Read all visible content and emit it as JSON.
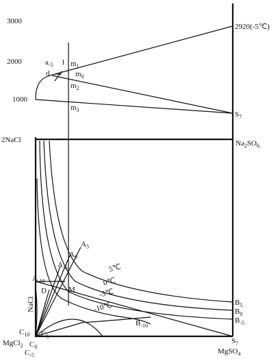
{
  "axis_labels": [
    "3000",
    "2000",
    "1000"
  ],
  "labels": {
    "NaCl2": {
      "main": "2NaCl"
    },
    "Na2SO4": {
      "main": "Na",
      "sub": "2",
      "tail": "SO",
      "sub2": "6."
    },
    "T2920": {
      "main": "2920(-5℃)"
    },
    "S7top": {
      "main": "S",
      "sub": "7"
    },
    "S7bot": {
      "main": "S",
      "sub": "7"
    },
    "MgSO4": {
      "main": "MgSO",
      "sub": "4"
    },
    "MgCl2": {
      "main": "MgCl",
      "sub": "2"
    },
    "C10": {
      "main": "C",
      "sub": "10"
    },
    "C0": {
      "main": "C",
      "sub": "0"
    },
    "C5": {
      "main": "C",
      "sub": "5"
    },
    "Cm5": {
      "main": "C",
      "sub": "-5"
    },
    "NaCl": {
      "main": "NaCl"
    },
    "Am10": {
      "main": "A",
      "sub": "-10"
    },
    "D": {
      "main": "D"
    },
    "M": {
      "main": "M"
    },
    "Am5": {
      "main": "A",
      "sub": "-5"
    },
    "A0": {
      "main": "A",
      "sub": "0"
    },
    "A5": {
      "main": "A",
      "sub": "5"
    },
    "t5": {
      "main": "5℃"
    },
    "t0": {
      "main": "0℃"
    },
    "tm5": {
      "main": "-5℃"
    },
    "tm10": {
      "main": "-10℃"
    },
    "B5": {
      "main": "B",
      "sub": "5"
    },
    "B0": {
      "main": "B",
      "sub": "0"
    },
    "Bm5": {
      "main": "B",
      "sub": "-5"
    },
    "Bm10": {
      "main": "B",
      "sub": "-10"
    },
    "am5": {
      "main": "a",
      "sub": "-5"
    },
    "l": {
      "main": "l"
    },
    "d": {
      "main": "d"
    },
    "m1": {
      "main": "m",
      "sub": "1"
    },
    "m0": {
      "main": "m",
      "sub": "0"
    },
    "m2": {
      "main": "m",
      "sub": "2"
    },
    "m3": {
      "main": "m",
      "sub": "3"
    }
  }
}
